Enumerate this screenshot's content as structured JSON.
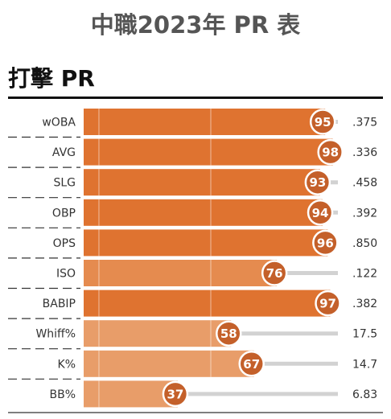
{
  "page_title": "中職2023年 PR 表",
  "section_title": "打擊 PR",
  "colors": {
    "bar_high": "#df7330",
    "bar_mid": "#e58b4f",
    "bar_low": "#e89d69",
    "badge": "#c4602a",
    "badge_outline": "#ffffff",
    "track": "#d2d2d2",
    "divider": "#333333"
  },
  "chart_data": {
    "type": "bar",
    "orientation": "horizontal",
    "categories": [
      "wOBA",
      "AVG",
      "SLG",
      "OBP",
      "OPS",
      "ISO",
      "BABIP",
      "Whiff%",
      "K%",
      "BB%"
    ],
    "values": [
      95,
      98,
      93,
      94,
      96,
      76,
      97,
      58,
      67,
      37
    ],
    "stat_values": [
      ".375",
      ".336",
      ".458",
      ".392",
      ".850",
      ".122",
      ".382",
      "17.5",
      "14.7",
      "6.83"
    ],
    "xlim": [
      0,
      100
    ],
    "title": "",
    "xlabel": "",
    "ylabel": ""
  }
}
